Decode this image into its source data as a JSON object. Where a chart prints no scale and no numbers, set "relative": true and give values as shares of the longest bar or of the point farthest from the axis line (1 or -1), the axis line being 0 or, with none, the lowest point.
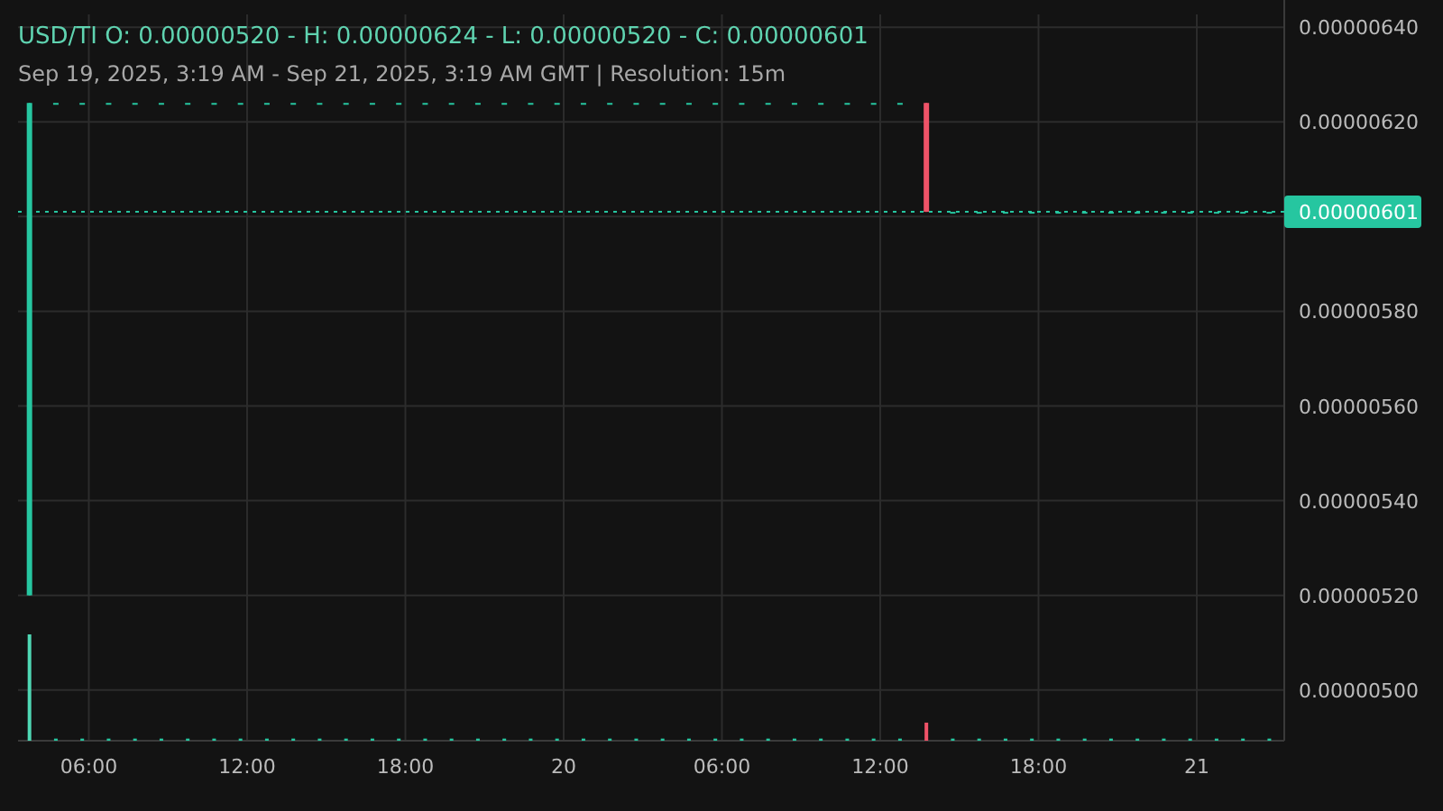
{
  "chart_data": [
    {
      "type": "candlestick",
      "title": "USD/TI  O: 0.00000520 - H: 0.00000624 - L: 0.00000520 - C: 0.00000601",
      "subtitle": "Sep 19, 2025, 3:19 AM - Sep 21, 2025, 3:19 AM GMT   |   Resolution: 15m",
      "x": [
        "2025-09-19T03:45",
        "2025-09-19T04:45",
        "2025-09-19T05:45",
        "2025-09-19T06:45",
        "2025-09-19T07:45",
        "2025-09-19T08:45",
        "2025-09-19T09:45",
        "2025-09-19T10:45",
        "2025-09-19T11:45",
        "2025-09-19T12:45",
        "2025-09-19T13:45",
        "2025-09-19T14:45",
        "2025-09-19T15:45",
        "2025-09-19T16:45",
        "2025-09-19T17:45",
        "2025-09-19T18:45",
        "2025-09-19T19:45",
        "2025-09-19T20:45",
        "2025-09-19T21:45",
        "2025-09-19T22:45",
        "2025-09-19T23:45",
        "2025-09-20T00:45",
        "2025-09-20T01:45",
        "2025-09-20T02:45",
        "2025-09-20T03:45",
        "2025-09-20T04:45",
        "2025-09-20T05:45",
        "2025-09-20T06:45",
        "2025-09-20T07:45",
        "2025-09-20T08:45",
        "2025-09-20T09:45",
        "2025-09-20T10:45",
        "2025-09-20T11:45",
        "2025-09-20T12:45",
        "2025-09-20T13:45",
        "2025-09-20T14:45",
        "2025-09-20T15:45",
        "2025-09-20T16:45",
        "2025-09-20T17:45",
        "2025-09-20T18:45",
        "2025-09-20T19:45",
        "2025-09-20T20:45",
        "2025-09-20T21:45",
        "2025-09-20T22:45",
        "2025-09-20T23:45",
        "2025-09-21T00:45",
        "2025-09-21T01:45",
        "2025-09-21T02:45"
      ],
      "ohlc": [
        [
          5.2e-06,
          6.24e-06,
          5.2e-06,
          6.24e-06
        ],
        [
          6.24e-06,
          6.24e-06,
          6.24e-06,
          6.24e-06
        ],
        [
          6.24e-06,
          6.24e-06,
          6.24e-06,
          6.24e-06
        ],
        [
          6.24e-06,
          6.24e-06,
          6.24e-06,
          6.24e-06
        ],
        [
          6.24e-06,
          6.24e-06,
          6.24e-06,
          6.24e-06
        ],
        [
          6.24e-06,
          6.24e-06,
          6.24e-06,
          6.24e-06
        ],
        [
          6.24e-06,
          6.24e-06,
          6.24e-06,
          6.24e-06
        ],
        [
          6.24e-06,
          6.24e-06,
          6.24e-06,
          6.24e-06
        ],
        [
          6.24e-06,
          6.24e-06,
          6.24e-06,
          6.24e-06
        ],
        [
          6.24e-06,
          6.24e-06,
          6.24e-06,
          6.24e-06
        ],
        [
          6.24e-06,
          6.24e-06,
          6.24e-06,
          6.24e-06
        ],
        [
          6.24e-06,
          6.24e-06,
          6.24e-06,
          6.24e-06
        ],
        [
          6.24e-06,
          6.24e-06,
          6.24e-06,
          6.24e-06
        ],
        [
          6.24e-06,
          6.24e-06,
          6.24e-06,
          6.24e-06
        ],
        [
          6.24e-06,
          6.24e-06,
          6.24e-06,
          6.24e-06
        ],
        [
          6.24e-06,
          6.24e-06,
          6.24e-06,
          6.24e-06
        ],
        [
          6.24e-06,
          6.24e-06,
          6.24e-06,
          6.24e-06
        ],
        [
          6.24e-06,
          6.24e-06,
          6.24e-06,
          6.24e-06
        ],
        [
          6.24e-06,
          6.24e-06,
          6.24e-06,
          6.24e-06
        ],
        [
          6.24e-06,
          6.24e-06,
          6.24e-06,
          6.24e-06
        ],
        [
          6.24e-06,
          6.24e-06,
          6.24e-06,
          6.24e-06
        ],
        [
          6.24e-06,
          6.24e-06,
          6.24e-06,
          6.24e-06
        ],
        [
          6.24e-06,
          6.24e-06,
          6.24e-06,
          6.24e-06
        ],
        [
          6.24e-06,
          6.24e-06,
          6.24e-06,
          6.24e-06
        ],
        [
          6.24e-06,
          6.24e-06,
          6.24e-06,
          6.24e-06
        ],
        [
          6.24e-06,
          6.24e-06,
          6.24e-06,
          6.24e-06
        ],
        [
          6.24e-06,
          6.24e-06,
          6.24e-06,
          6.24e-06
        ],
        [
          6.24e-06,
          6.24e-06,
          6.24e-06,
          6.24e-06
        ],
        [
          6.24e-06,
          6.24e-06,
          6.24e-06,
          6.24e-06
        ],
        [
          6.24e-06,
          6.24e-06,
          6.24e-06,
          6.24e-06
        ],
        [
          6.24e-06,
          6.24e-06,
          6.24e-06,
          6.24e-06
        ],
        [
          6.24e-06,
          6.24e-06,
          6.24e-06,
          6.24e-06
        ],
        [
          6.24e-06,
          6.24e-06,
          6.24e-06,
          6.24e-06
        ],
        [
          6.24e-06,
          6.24e-06,
          6.24e-06,
          6.24e-06
        ],
        [
          6.24e-06,
          6.24e-06,
          6.01e-06,
          6.01e-06
        ],
        [
          6.01e-06,
          6.01e-06,
          6.01e-06,
          6.01e-06
        ],
        [
          6.01e-06,
          6.01e-06,
          6.01e-06,
          6.01e-06
        ],
        [
          6.01e-06,
          6.01e-06,
          6.01e-06,
          6.01e-06
        ],
        [
          6.01e-06,
          6.01e-06,
          6.01e-06,
          6.01e-06
        ],
        [
          6.01e-06,
          6.01e-06,
          6.01e-06,
          6.01e-06
        ],
        [
          6.01e-06,
          6.01e-06,
          6.01e-06,
          6.01e-06
        ],
        [
          6.01e-06,
          6.01e-06,
          6.01e-06,
          6.01e-06
        ],
        [
          6.01e-06,
          6.01e-06,
          6.01e-06,
          6.01e-06
        ],
        [
          6.01e-06,
          6.01e-06,
          6.01e-06,
          6.01e-06
        ],
        [
          6.01e-06,
          6.01e-06,
          6.01e-06,
          6.01e-06
        ],
        [
          6.01e-06,
          6.01e-06,
          6.01e-06,
          6.01e-06
        ],
        [
          6.01e-06,
          6.01e-06,
          6.01e-06,
          6.01e-06
        ],
        [
          6.01e-06,
          6.01e-06,
          6.01e-06,
          6.01e-06
        ]
      ],
      "colors": [
        "#26c6a0",
        "#26c6a0",
        "#26c6a0",
        "#26c6a0",
        "#26c6a0",
        "#26c6a0",
        "#26c6a0",
        "#26c6a0",
        "#26c6a0",
        "#26c6a0",
        "#26c6a0",
        "#26c6a0",
        "#26c6a0",
        "#26c6a0",
        "#26c6a0",
        "#26c6a0",
        "#26c6a0",
        "#26c6a0",
        "#26c6a0",
        "#26c6a0",
        "#26c6a0",
        "#26c6a0",
        "#26c6a0",
        "#26c6a0",
        "#26c6a0",
        "#26c6a0",
        "#26c6a0",
        "#26c6a0",
        "#26c6a0",
        "#26c6a0",
        "#26c6a0",
        "#26c6a0",
        "#26c6a0",
        "#26c6a0",
        "#ef5368",
        "#26c6a0",
        "#26c6a0",
        "#26c6a0",
        "#26c6a0",
        "#26c6a0",
        "#26c6a0",
        "#26c6a0",
        "#26c6a0",
        "#26c6a0",
        "#26c6a0",
        "#26c6a0",
        "#26c6a0",
        "#26c6a0"
      ],
      "xlim": [
        "2025-09-19T03:19",
        "2025-09-21T03:19"
      ],
      "xticks": [
        {
          "value": "2025-09-19T06:00",
          "label": null
        },
        {
          "value": "2025-09-19T12:00",
          "label": null
        },
        {
          "value": "2025-09-19T18:00",
          "label": null
        },
        {
          "value": "2025-09-20T00:00",
          "label": null
        },
        {
          "value": "2025-09-20T06:00",
          "label": null
        },
        {
          "value": "2025-09-20T12:00",
          "label": null
        },
        {
          "value": "2025-09-20T18:00",
          "label": null
        },
        {
          "value": "2025-09-21T00:00",
          "label": null
        }
      ],
      "ylim": [
        4.893e-06,
        6.427e-06
      ],
      "yticks": [
        {
          "value": 5e-06,
          "label": "0.00000500"
        },
        {
          "value": 5.2e-06,
          "label": "0.00000520"
        },
        {
          "value": 5.4e-06,
          "label": "0.00000540"
        },
        {
          "value": 5.6e-06,
          "label": "0.00000560"
        },
        {
          "value": 5.8e-06,
          "label": "0.00000580"
        },
        {
          "value": 6e-06,
          "label": null
        },
        {
          "value": 6.2e-06,
          "label": "0.00000620"
        },
        {
          "value": 6.4e-06,
          "label": "0.00000640"
        }
      ],
      "grid": true,
      "tick_labels": "y",
      "ref_lines": [
        {
          "axis": "y",
          "value": 6.01e-06,
          "label": "0.00000601",
          "color": "#26c6a0",
          "line_style": "dotted"
        }
      ]
    },
    {
      "type": "bar",
      "relative": true,
      "tick_labels": "x",
      "xlim": [
        "2025-09-19T03:19",
        "2025-09-21T03:19"
      ],
      "xticks": [
        {
          "value": "2025-09-19T06:00",
          "label": "06:00"
        },
        {
          "value": "2025-09-19T12:00",
          "label": "12:00"
        },
        {
          "value": "2025-09-19T18:00",
          "label": "18:00"
        },
        {
          "value": "2025-09-20T00:00",
          "label": "20"
        },
        {
          "value": "2025-09-20T06:00",
          "label": "06:00"
        },
        {
          "value": "2025-09-20T12:00",
          "label": "12:00"
        },
        {
          "value": "2025-09-20T18:00",
          "label": "18:00"
        },
        {
          "value": "2025-09-21T00:00",
          "label": "21"
        }
      ],
      "x": [
        "2025-09-19T03:45",
        "2025-09-19T04:45",
        "2025-09-19T05:45",
        "2025-09-19T06:45",
        "2025-09-19T07:45",
        "2025-09-19T08:45",
        "2025-09-19T09:45",
        "2025-09-19T10:45",
        "2025-09-19T11:45",
        "2025-09-19T12:45",
        "2025-09-19T13:45",
        "2025-09-19T14:45",
        "2025-09-19T15:45",
        "2025-09-19T16:45",
        "2025-09-19T17:45",
        "2025-09-19T18:45",
        "2025-09-19T19:45",
        "2025-09-19T20:45",
        "2025-09-19T21:45",
        "2025-09-19T22:45",
        "2025-09-19T23:45",
        "2025-09-20T00:45",
        "2025-09-20T01:45",
        "2025-09-20T02:45",
        "2025-09-20T03:45",
        "2025-09-20T04:45",
        "2025-09-20T05:45",
        "2025-09-20T06:45",
        "2025-09-20T07:45",
        "2025-09-20T08:45",
        "2025-09-20T09:45",
        "2025-09-20T10:45",
        "2025-09-20T11:45",
        "2025-09-20T12:45",
        "2025-09-20T13:45",
        "2025-09-20T14:45",
        "2025-09-20T15:45",
        "2025-09-20T16:45",
        "2025-09-20T17:45",
        "2025-09-20T18:45",
        "2025-09-20T19:45",
        "2025-09-20T20:45",
        "2025-09-20T21:45",
        "2025-09-20T22:45",
        "2025-09-20T23:45",
        "2025-09-21T00:45",
        "2025-09-21T01:45",
        "2025-09-21T02:45"
      ],
      "values": [
        1,
        0.02,
        0.02,
        0.02,
        0.02,
        0.02,
        0.02,
        0.02,
        0.02,
        0.02,
        0.02,
        0.02,
        0.02,
        0.02,
        0.02,
        0.02,
        0.02,
        0.02,
        0.02,
        0.02,
        0.02,
        0.02,
        0.02,
        0.02,
        0.02,
        0.02,
        0.02,
        0.02,
        0.02,
        0.02,
        0.02,
        0.02,
        0.02,
        0.02,
        0.17,
        0.02,
        0.02,
        0.02,
        0.02,
        0.02,
        0.02,
        0.02,
        0.02,
        0.02,
        0.02,
        0.02,
        0.02,
        0.02
      ],
      "colors": [
        "#4fd8b4",
        "#26c6a0",
        "#26c6a0",
        "#26c6a0",
        "#26c6a0",
        "#26c6a0",
        "#26c6a0",
        "#26c6a0",
        "#26c6a0",
        "#26c6a0",
        "#26c6a0",
        "#26c6a0",
        "#26c6a0",
        "#26c6a0",
        "#26c6a0",
        "#26c6a0",
        "#26c6a0",
        "#26c6a0",
        "#26c6a0",
        "#26c6a0",
        "#26c6a0",
        "#26c6a0",
        "#26c6a0",
        "#26c6a0",
        "#26c6a0",
        "#26c6a0",
        "#26c6a0",
        "#26c6a0",
        "#26c6a0",
        "#26c6a0",
        "#26c6a0",
        "#26c6a0",
        "#26c6a0",
        "#26c6a0",
        "#ef5368",
        "#26c6a0",
        "#26c6a0",
        "#26c6a0",
        "#26c6a0",
        "#26c6a0",
        "#26c6a0",
        "#26c6a0",
        "#26c6a0",
        "#26c6a0",
        "#26c6a0",
        "#26c6a0",
        "#26c6a0",
        "#26c6a0"
      ]
    }
  ]
}
